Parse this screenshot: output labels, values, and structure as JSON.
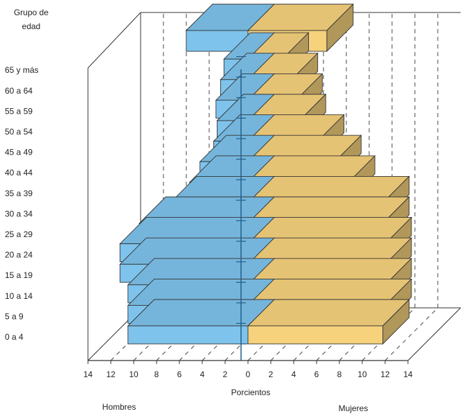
{
  "chart_data": {
    "type": "bar",
    "orientation": "horizontal",
    "style": "population-pyramid-3d",
    "ylabel": [
      "Grupo de",
      "edad"
    ],
    "xlabel": "Porcientos",
    "categories": [
      "0 a 4",
      "5 a 9",
      "10 a 14",
      "15 a 19",
      "20 a 24",
      "25 a 29",
      "30 a 34",
      "35 a 39",
      "40 a 44",
      "45 a 49",
      "50 a 54",
      "55 a 59",
      "60 a 64",
      "65 y más"
    ],
    "series": [
      {
        "name": "Hombres",
        "color": "#7ec3ec",
        "values": [
          10.5,
          10.5,
          10.5,
          11.2,
          11.2,
          9.5,
          6.8,
          5.1,
          4.2,
          3.0,
          2.7,
          2.8,
          2.4,
          2.1
        ],
        "top_band": 5.4
      },
      {
        "name": "Mujeres",
        "color": "#f6d27d",
        "values": [
          11.8,
          12.0,
          12.0,
          12.0,
          12.0,
          11.8,
          11.8,
          8.8,
          7.6,
          6.1,
          4.5,
          4.2,
          3.8,
          3.0
        ],
        "top_band": 6.9
      }
    ],
    "xticks": [
      "14",
      "12",
      "10",
      "8",
      "6",
      "4",
      "2",
      "0",
      "2",
      "4",
      "6",
      "8",
      "10",
      "12",
      "14"
    ],
    "xlim": [
      -14,
      14
    ]
  }
}
